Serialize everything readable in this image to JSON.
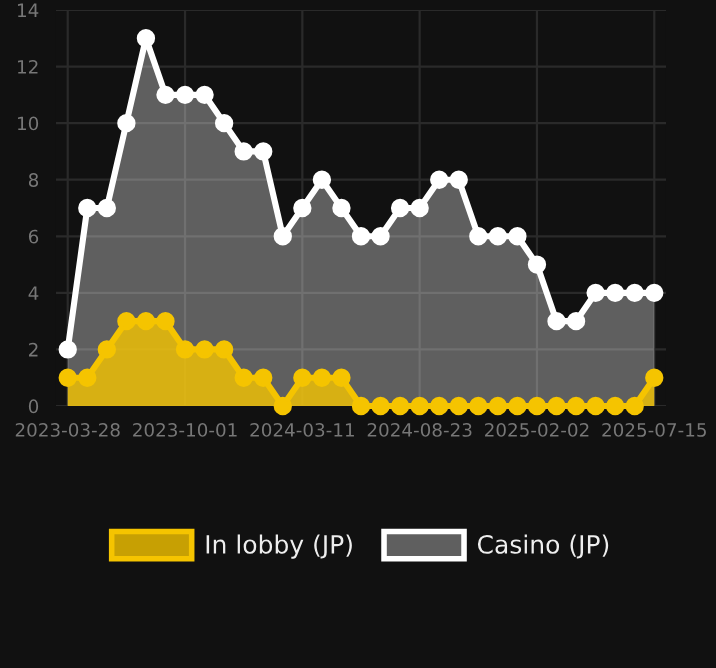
{
  "chart_data": {
    "type": "area",
    "categories": [
      "2023-03-28",
      null,
      null,
      null,
      null,
      null,
      "2023-10-01",
      null,
      null,
      null,
      null,
      null,
      "2024-03-11",
      null,
      null,
      null,
      null,
      null,
      "2024-08-23",
      null,
      null,
      null,
      null,
      null,
      "2025-02-02",
      null,
      null,
      null,
      null,
      null,
      "2025-07-15"
    ],
    "series": [
      {
        "name": "Casino (JP)",
        "color": "#ffffff",
        "values": [
          2,
          7,
          7,
          10,
          13,
          11,
          11,
          11,
          10,
          9,
          9,
          6,
          7,
          8,
          7,
          6,
          6,
          7,
          7,
          8,
          8,
          6,
          6,
          6,
          5,
          3,
          3,
          4,
          4,
          4,
          4
        ]
      },
      {
        "name": "In lobby (JP)",
        "color": "#f5c400",
        "values": [
          1,
          1,
          2,
          3,
          3,
          3,
          2,
          2,
          2,
          1,
          1,
          0,
          1,
          1,
          1,
          0,
          0,
          0,
          0,
          0,
          0,
          0,
          0,
          0,
          0,
          0,
          0,
          0,
          0,
          0,
          1
        ]
      }
    ],
    "ylim": [
      0,
      14
    ],
    "yticks": [
      0,
      2,
      4,
      6,
      8,
      10,
      12,
      14
    ],
    "grid": true,
    "legend": "bottom",
    "marker": "circle",
    "line_style": "solid"
  }
}
